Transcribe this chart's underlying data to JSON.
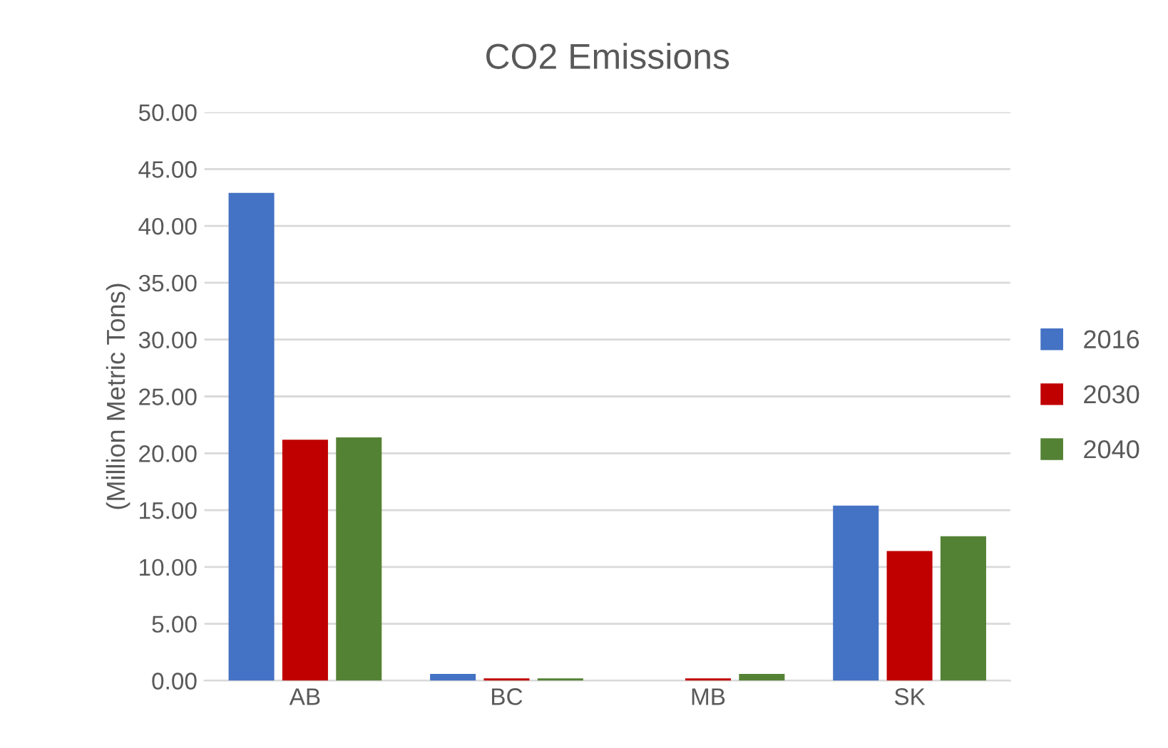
{
  "chart_data": {
    "type": "bar",
    "title": "CO2 Emissions",
    "ylabel": "(Million Metric Tons)",
    "categories": [
      "AB",
      "BC",
      "MB",
      "SK"
    ],
    "series": [
      {
        "name": "2016",
        "color": "#4472c4",
        "values": [
          42.9,
          0.6,
          null,
          15.4
        ]
      },
      {
        "name": "2030",
        "color": "#c00000",
        "values": [
          21.2,
          0.2,
          0.2,
          11.4
        ]
      },
      {
        "name": "2040",
        "color": "#548235",
        "values": [
          21.4,
          0.2,
          0.6,
          12.7
        ]
      }
    ],
    "ylim": [
      0,
      50
    ],
    "yticks": [
      {
        "value": 0,
        "label": "0.00"
      },
      {
        "value": 5,
        "label": "5.00"
      },
      {
        "value": 10,
        "label": "10.00"
      },
      {
        "value": 15,
        "label": "15.00"
      },
      {
        "value": 20,
        "label": "20.00"
      },
      {
        "value": 25,
        "label": "25.00"
      },
      {
        "value": 30,
        "label": "30.00"
      },
      {
        "value": 35,
        "label": "35.00"
      },
      {
        "value": 40,
        "label": "40.00"
      },
      {
        "value": 45,
        "label": "45.00"
      },
      {
        "value": 50,
        "label": "50.00"
      }
    ],
    "grid": "y",
    "legend": "right"
  }
}
